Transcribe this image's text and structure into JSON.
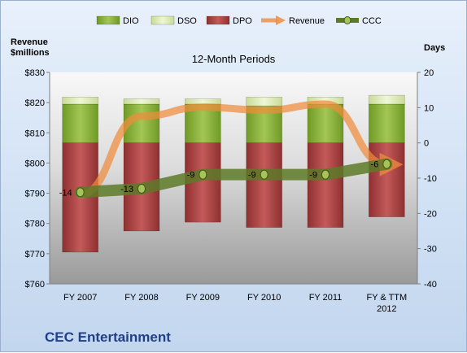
{
  "company": "CEC Entertainment",
  "chart_data": {
    "type": "bar",
    "title": "12-Month Periods",
    "left_axis_label_line1": "Revenue",
    "left_axis_label_line2": "$millions",
    "right_axis_label": "Days",
    "categories": [
      "FY 2007",
      "FY 2008",
      "FY 2009",
      "FY 2010",
      "FY 2011",
      "FY & TTM 2012"
    ],
    "left_ylim": [
      760,
      830
    ],
    "left_ticks": [
      760,
      770,
      780,
      790,
      800,
      810,
      820,
      830
    ],
    "left_tick_labels": [
      "$760",
      "$770",
      "$780",
      "$790",
      "$800",
      "$810",
      "$820",
      "$830"
    ],
    "right_ylim": [
      -40,
      20
    ],
    "right_ticks": [
      -40,
      -30,
      -20,
      -10,
      0,
      10,
      20
    ],
    "right_tick_labels": [
      "-40",
      "-30",
      "-20",
      "-10",
      "0",
      "10",
      "20"
    ],
    "bar_series": [
      {
        "name": "DIO",
        "color": "#8db23c",
        "values": [
          11,
          11,
          11,
          10.5,
          11,
          11
        ]
      },
      {
        "name": "DSO",
        "color": "#dcecb0",
        "values": [
          2,
          1.5,
          1.5,
          2.5,
          2,
          2.5
        ]
      },
      {
        "name": "DPO",
        "color": "#b04848",
        "values": [
          -31,
          -25,
          -22.5,
          -24,
          -24,
          -21
        ]
      }
    ],
    "line_series": [
      {
        "name": "Revenue",
        "color": "#f08c3c",
        "axis": "left",
        "values": [
          789.5,
          815.5,
          818.5,
          817.5,
          819.5,
          799.5
        ]
      },
      {
        "name": "CCC",
        "color": "#6a8a30",
        "axis": "right",
        "values": [
          -14,
          -13,
          -9,
          -9,
          -9,
          -6
        ]
      }
    ],
    "ccc_labels": [
      "-14",
      "-13",
      "-9",
      "-9",
      "-9",
      "-6"
    ],
    "legend_position": "top",
    "grid": false
  }
}
